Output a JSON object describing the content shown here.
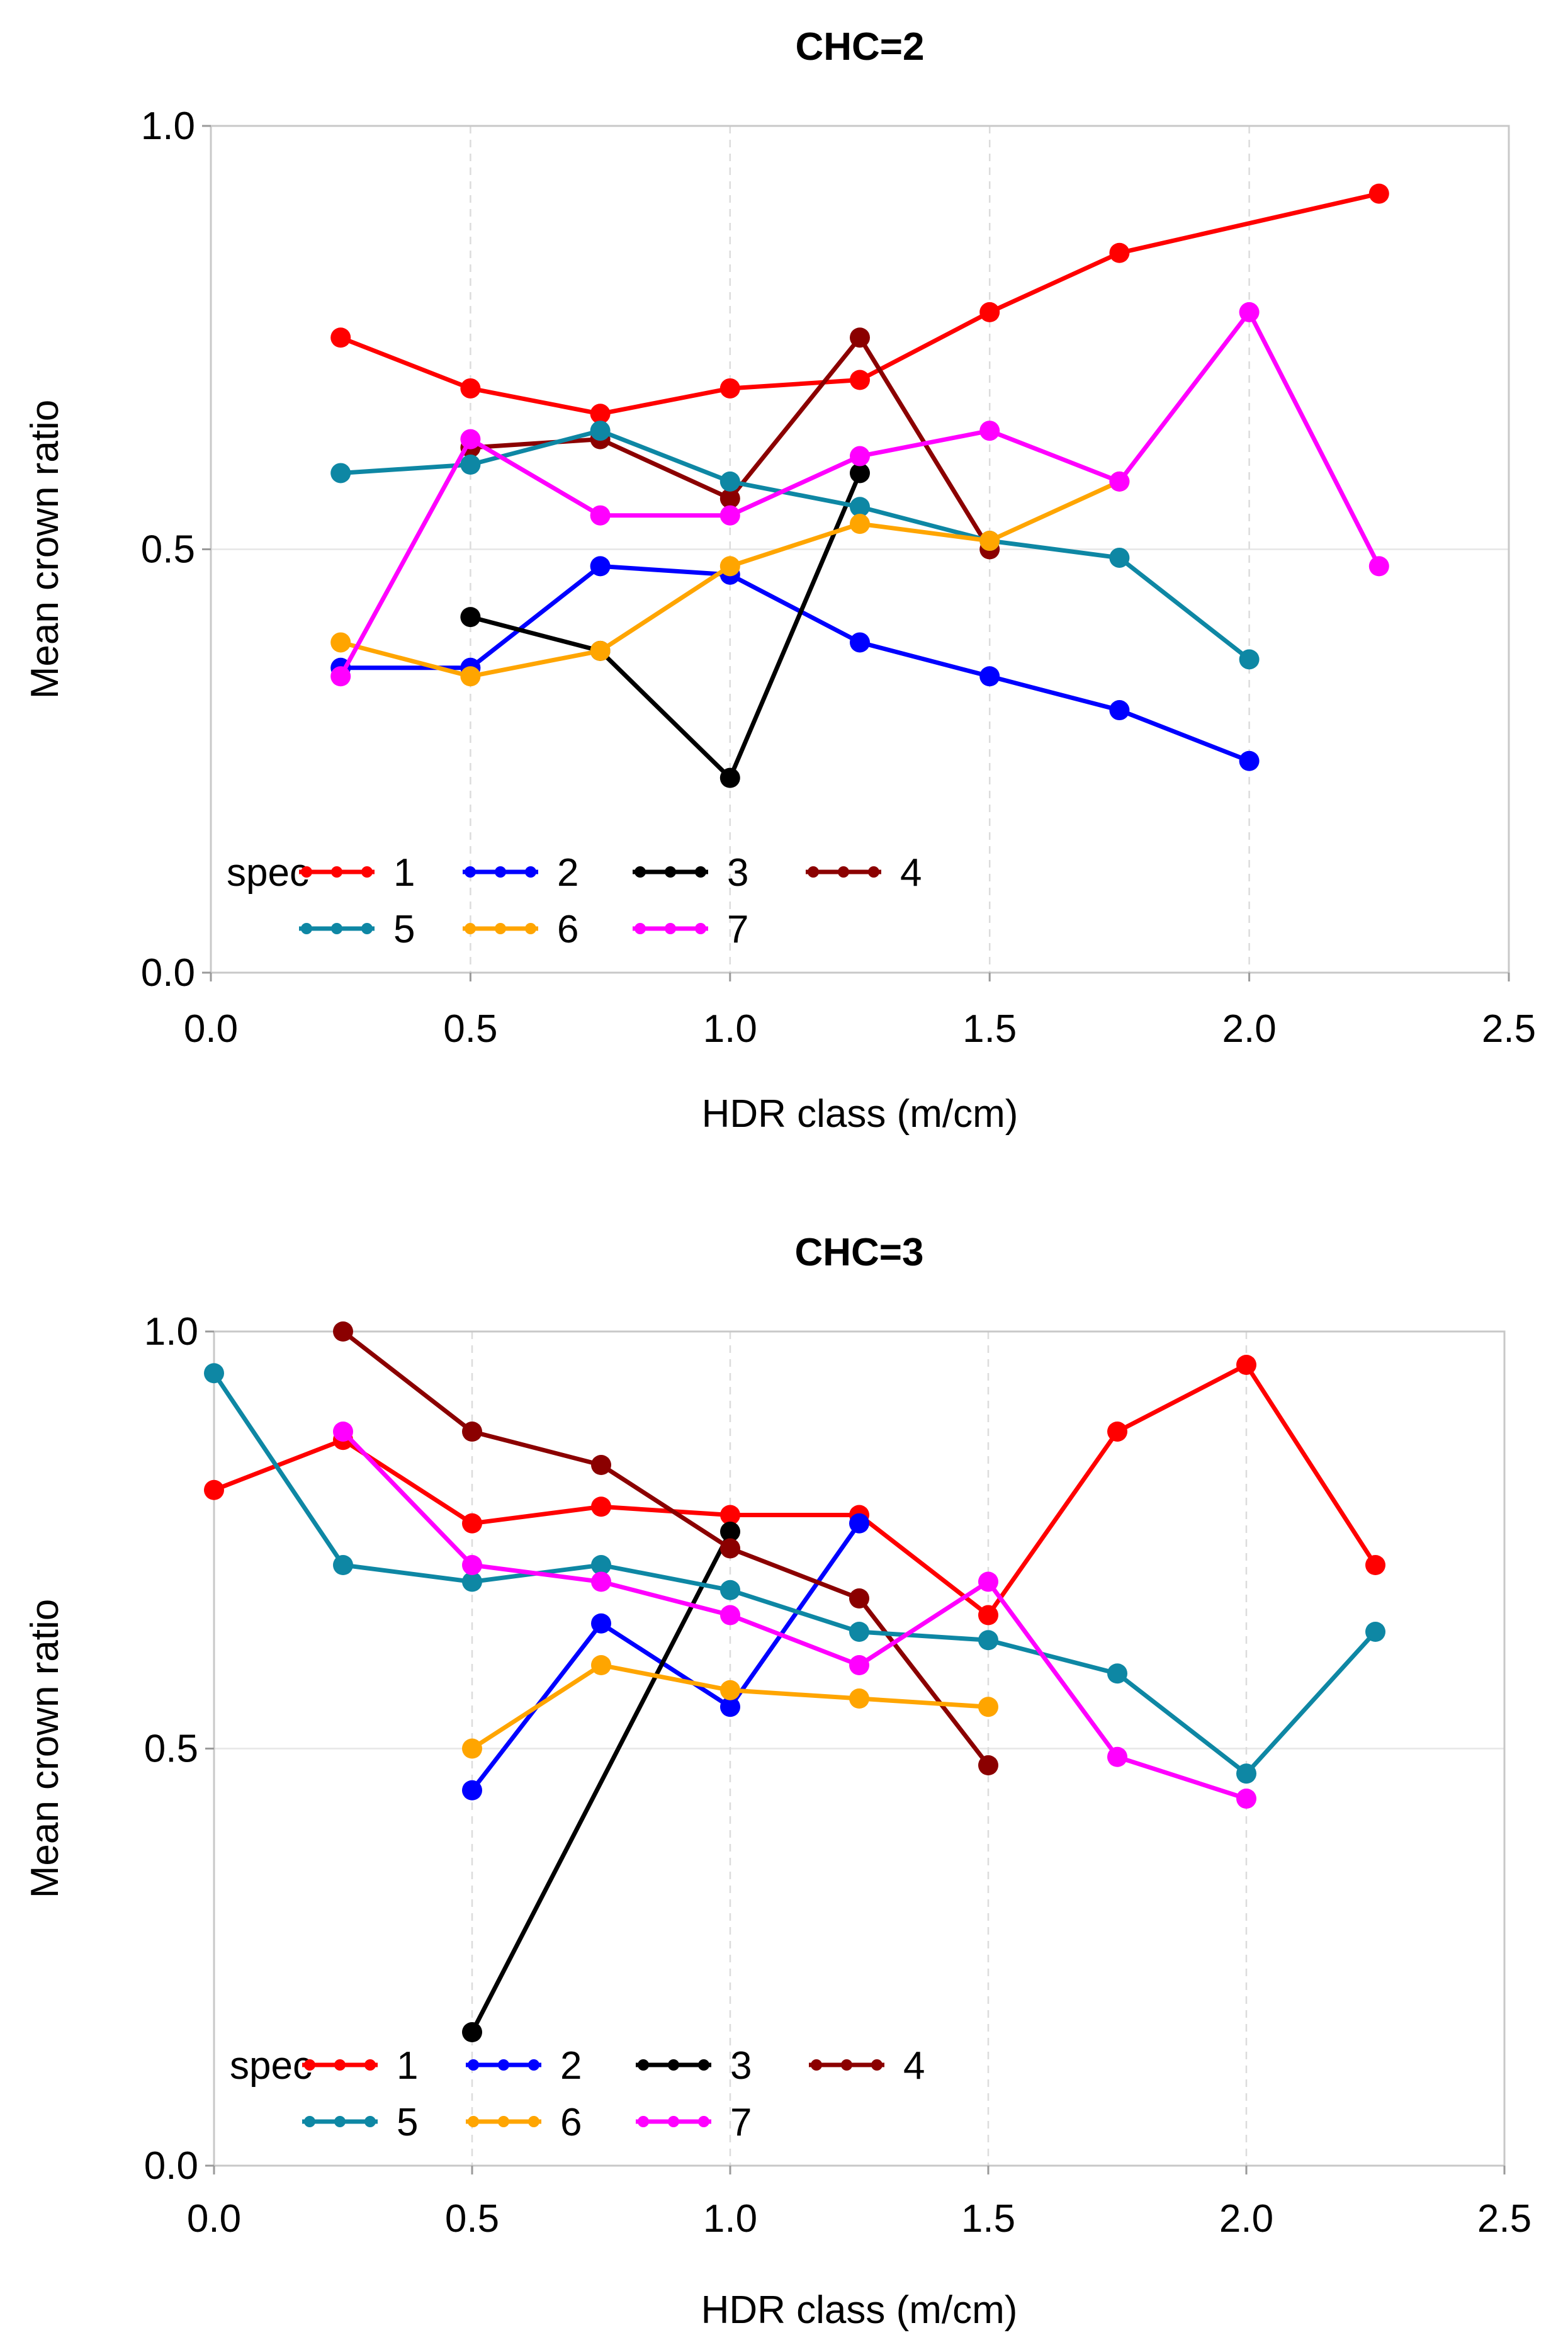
{
  "chart_data": [
    {
      "type": "line",
      "title": "CHC=2",
      "xlabel": "HDR class (m/cm)",
      "ylabel": "Mean crown ratio",
      "xlim": [
        0,
        2.5
      ],
      "ylim": [
        0,
        1.0
      ],
      "xticks": [
        "0.0",
        "0.5",
        "1.0",
        "1.5",
        "2.0",
        "2.5"
      ],
      "yticks": [
        "0.0",
        "0.5",
        "1.0"
      ],
      "grid": true,
      "legend": {
        "title": "spec",
        "placement": "bottom-left"
      },
      "series": [
        {
          "name": "1",
          "color": "#ff0000",
          "points": [
            [
              0.25,
              0.75
            ],
            [
              0.5,
              0.69
            ],
            [
              0.75,
              0.66
            ],
            [
              1.0,
              0.69
            ],
            [
              1.25,
              0.7
            ],
            [
              1.5,
              0.78
            ],
            [
              1.75,
              0.85
            ],
            [
              2.25,
              0.92
            ]
          ]
        },
        {
          "name": "2",
          "color": "#0000ff",
          "points": [
            [
              0.25,
              0.36
            ],
            [
              0.5,
              0.36
            ],
            [
              0.75,
              0.48
            ],
            [
              1.0,
              0.47
            ],
            [
              1.25,
              0.39
            ],
            [
              1.5,
              0.35
            ],
            [
              1.75,
              0.31
            ],
            [
              2.0,
              0.25
            ]
          ]
        },
        {
          "name": "3",
          "color": "#000000",
          "points": [
            [
              0.5,
              0.42
            ],
            [
              0.75,
              0.38
            ],
            [
              1.0,
              0.23
            ],
            [
              1.25,
              0.59
            ]
          ]
        },
        {
          "name": "4",
          "color": "#8b0000",
          "points": [
            [
              0.5,
              0.62
            ],
            [
              0.75,
              0.63
            ],
            [
              1.0,
              0.56
            ],
            [
              1.25,
              0.75
            ],
            [
              1.5,
              0.5
            ]
          ]
        },
        {
          "name": "5",
          "color": "#0e87a4",
          "points": [
            [
              0.25,
              0.59
            ],
            [
              0.5,
              0.6
            ],
            [
              0.75,
              0.64
            ],
            [
              1.0,
              0.58
            ],
            [
              1.25,
              0.55
            ],
            [
              1.5,
              0.51
            ],
            [
              1.75,
              0.49
            ],
            [
              2.0,
              0.37
            ]
          ]
        },
        {
          "name": "6",
          "color": "#ffa500",
          "points": [
            [
              0.25,
              0.39
            ],
            [
              0.5,
              0.35
            ],
            [
              0.75,
              0.38
            ],
            [
              1.0,
              0.48
            ],
            [
              1.25,
              0.53
            ],
            [
              1.5,
              0.51
            ],
            [
              1.75,
              0.58
            ]
          ]
        },
        {
          "name": "7",
          "color": "#ff00ff",
          "points": [
            [
              0.25,
              0.35
            ],
            [
              0.5,
              0.63
            ],
            [
              0.75,
              0.54
            ],
            [
              1.0,
              0.54
            ],
            [
              1.25,
              0.61
            ],
            [
              1.5,
              0.64
            ],
            [
              1.75,
              0.58
            ],
            [
              2.0,
              0.78
            ],
            [
              2.25,
              0.48
            ]
          ]
        }
      ]
    },
    {
      "type": "line",
      "title": "CHC=3",
      "xlabel": "HDR class (m/cm)",
      "ylabel": "Mean crown ratio",
      "xlim": [
        0,
        2.5
      ],
      "ylim": [
        0,
        1.0
      ],
      "xticks": [
        "0.0",
        "0.5",
        "1.0",
        "1.5",
        "2.0",
        "2.5"
      ],
      "yticks": [
        "0.0",
        "0.5",
        "1.0"
      ],
      "grid": true,
      "legend": {
        "title": "spec",
        "placement": "bottom-left"
      },
      "series": [
        {
          "name": "1",
          "color": "#ff0000",
          "points": [
            [
              0.0,
              0.81
            ],
            [
              0.25,
              0.87
            ],
            [
              0.5,
              0.77
            ],
            [
              0.75,
              0.79
            ],
            [
              1.0,
              0.78
            ],
            [
              1.25,
              0.78
            ],
            [
              1.5,
              0.66
            ],
            [
              1.75,
              0.88
            ],
            [
              2.0,
              0.96
            ],
            [
              2.25,
              0.72
            ]
          ]
        },
        {
          "name": "2",
          "color": "#0000ff",
          "points": [
            [
              0.5,
              0.45
            ],
            [
              0.75,
              0.65
            ],
            [
              1.0,
              0.55
            ],
            [
              1.25,
              0.77
            ]
          ]
        },
        {
          "name": "3",
          "color": "#000000",
          "points": [
            [
              0.5,
              0.16
            ],
            [
              1.0,
              0.76
            ]
          ]
        },
        {
          "name": "4",
          "color": "#8b0000",
          "points": [
            [
              0.25,
              1.0
            ],
            [
              0.5,
              0.88
            ],
            [
              0.75,
              0.84
            ],
            [
              1.0,
              0.74
            ],
            [
              1.25,
              0.68
            ],
            [
              1.5,
              0.48
            ]
          ]
        },
        {
          "name": "5",
          "color": "#0e87a4",
          "points": [
            [
              0.0,
              0.95
            ],
            [
              0.25,
              0.72
            ],
            [
              0.5,
              0.7
            ],
            [
              0.75,
              0.72
            ],
            [
              1.0,
              0.69
            ],
            [
              1.25,
              0.64
            ],
            [
              1.5,
              0.63
            ],
            [
              1.75,
              0.59
            ],
            [
              2.0,
              0.47
            ],
            [
              2.25,
              0.64
            ]
          ]
        },
        {
          "name": "6",
          "color": "#ffa500",
          "points": [
            [
              0.5,
              0.5
            ],
            [
              0.75,
              0.6
            ],
            [
              1.0,
              0.57
            ],
            [
              1.25,
              0.56
            ],
            [
              1.5,
              0.55
            ]
          ]
        },
        {
          "name": "7",
          "color": "#ff00ff",
          "points": [
            [
              0.25,
              0.88
            ],
            [
              0.5,
              0.72
            ],
            [
              0.75,
              0.7
            ],
            [
              1.0,
              0.66
            ],
            [
              1.25,
              0.6
            ],
            [
              1.5,
              0.7
            ],
            [
              1.75,
              0.49
            ],
            [
              2.0,
              0.44
            ]
          ]
        }
      ]
    }
  ]
}
